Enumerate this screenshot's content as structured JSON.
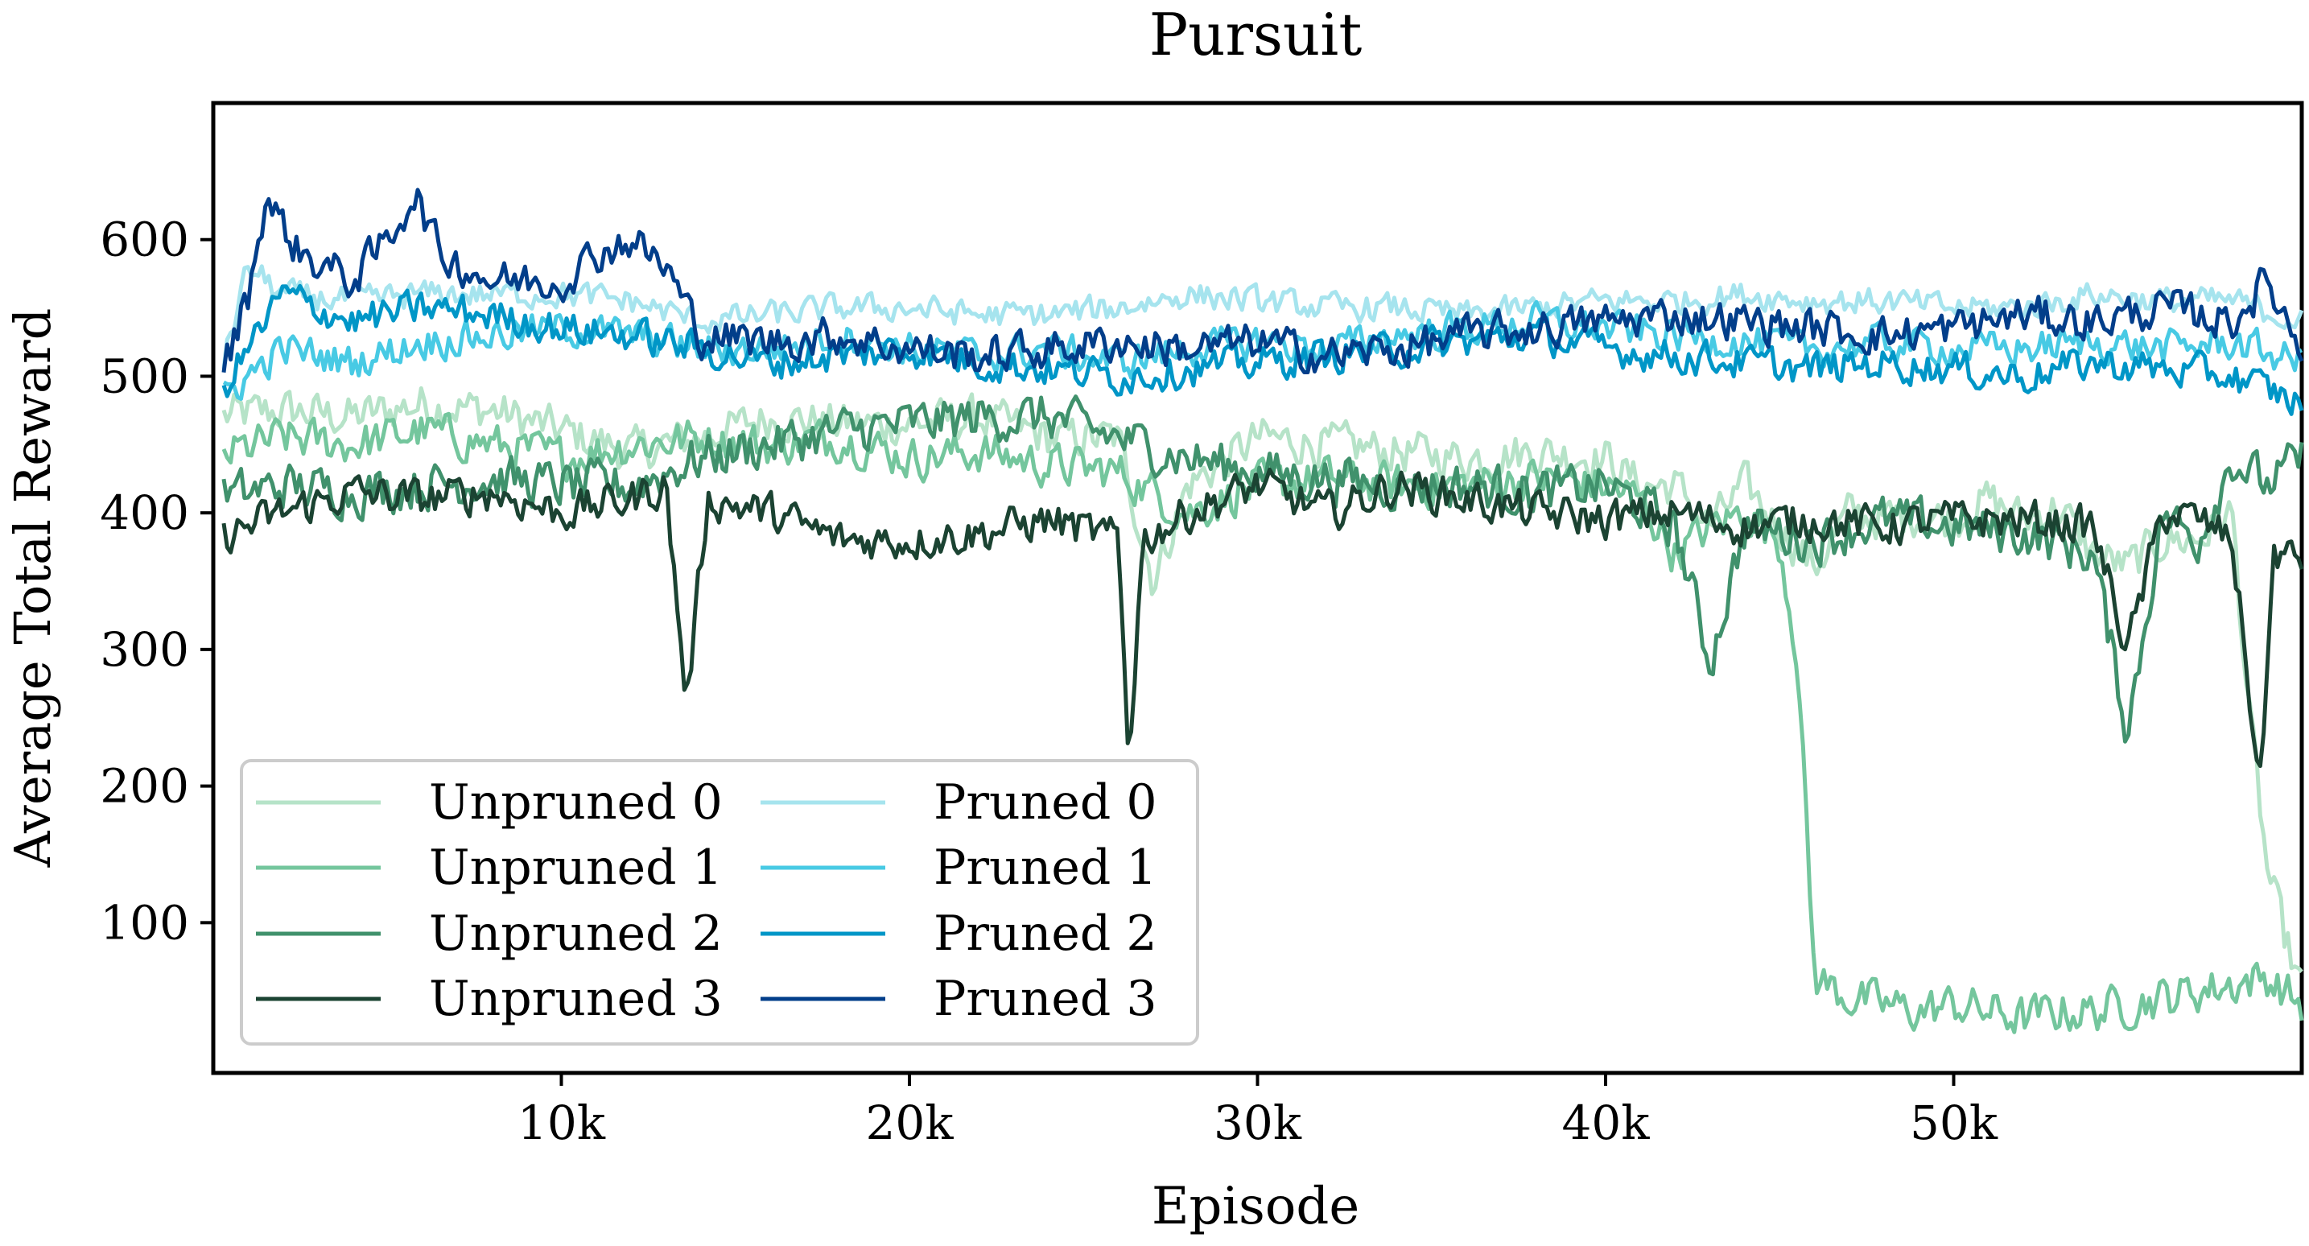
{
  "chart_data": {
    "type": "line",
    "title": "Pursuit",
    "xlabel": "Episode",
    "ylabel": "Average Total Reward",
    "xlim": [
      0,
      60000
    ],
    "ylim": [
      -10,
      700
    ],
    "x_ticks": [
      10000,
      20000,
      30000,
      40000,
      50000
    ],
    "x_tick_labels": [
      "10k",
      "20k",
      "30k",
      "40k",
      "50k"
    ],
    "y_ticks": [
      100,
      200,
      300,
      400,
      500,
      600
    ],
    "y_tick_labels": [
      "100",
      "200",
      "300",
      "400",
      "500",
      "600"
    ],
    "grid": false,
    "legend_position": "lower-left",
    "legend_columns": 2,
    "series": [
      {
        "name": "Unpruned 0",
        "color": "#b6e3c8",
        "x": [
          0,
          2000,
          4000,
          6000,
          8000,
          10000,
          12000,
          14000,
          16000,
          18000,
          20000,
          22000,
          24000,
          26000,
          27000,
          28000,
          30000,
          32000,
          34000,
          36000,
          38000,
          40000,
          41000,
          42000,
          43000,
          44000,
          45000,
          46000,
          47000,
          48000,
          49000,
          50000,
          51000,
          52000,
          53000,
          54000,
          55000,
          56000,
          57000,
          58000,
          58500,
          59000,
          59500,
          60000
        ],
        "y": [
          470,
          475,
          470,
          480,
          475,
          460,
          445,
          455,
          470,
          465,
          465,
          470,
          455,
          455,
          350,
          420,
          455,
          450,
          445,
          440,
          445,
          440,
          420,
          420,
          390,
          420,
          390,
          360,
          400,
          395,
          400,
          395,
          410,
          395,
          405,
          370,
          360,
          380,
          380,
          400,
          250,
          140,
          90,
          50
        ]
      },
      {
        "name": "Unpruned 1",
        "color": "#74c69d",
        "x": [
          0,
          2000,
          4000,
          6000,
          8000,
          10000,
          12000,
          14000,
          16000,
          18000,
          20000,
          22000,
          24000,
          26000,
          28000,
          30000,
          32000,
          34000,
          36000,
          38000,
          40000,
          41000,
          42000,
          43000,
          44000,
          45000,
          45500,
          46000,
          47000,
          48000,
          49000,
          50000,
          51000,
          52000,
          53000,
          54000,
          55000,
          56000,
          57000,
          58000,
          59000,
          60000
        ],
        "y": [
          440,
          455,
          450,
          460,
          450,
          440,
          450,
          455,
          450,
          455,
          440,
          445,
          435,
          430,
          400,
          420,
          425,
          420,
          420,
          425,
          420,
          410,
          370,
          390,
          400,
          380,
          300,
          60,
          45,
          40,
          35,
          40,
          35,
          30,
          35,
          35,
          40,
          45,
          50,
          55,
          60,
          40
        ]
      },
      {
        "name": "Unpruned 2",
        "color": "#40916c",
        "x": [
          0,
          2000,
          4000,
          6000,
          8000,
          10000,
          12000,
          14000,
          16000,
          18000,
          20000,
          22000,
          24000,
          26000,
          28000,
          30000,
          32000,
          34000,
          36000,
          38000,
          40000,
          42000,
          43000,
          44000,
          46000,
          48000,
          50000,
          52000,
          54000,
          55000,
          56000,
          57000,
          58000,
          59000,
          60000
        ],
        "y": [
          410,
          420,
          415,
          420,
          425,
          420,
          420,
          440,
          450,
          460,
          465,
          470,
          470,
          455,
          440,
          430,
          425,
          420,
          420,
          415,
          420,
          390,
          290,
          390,
          380,
          395,
          390,
          385,
          370,
          240,
          400,
          380,
          440,
          420,
          440
        ]
      },
      {
        "name": "Unpruned 3",
        "color": "#1b4332",
        "x": [
          0,
          2000,
          4000,
          6000,
          8000,
          10000,
          12000,
          13000,
          13600,
          14200,
          16000,
          18000,
          20000,
          22000,
          24000,
          26000,
          26300,
          26700,
          28000,
          30000,
          32000,
          34000,
          36000,
          38000,
          40000,
          42000,
          44000,
          46000,
          48000,
          50000,
          52000,
          54000,
          55000,
          56000,
          57000,
          58000,
          58800,
          59200,
          60000
        ],
        "y": [
          380,
          400,
          415,
          410,
          415,
          400,
          410,
          420,
          260,
          410,
          400,
          380,
          380,
          385,
          395,
          380,
          220,
          380,
          400,
          420,
          400,
          420,
          410,
          400,
          395,
          400,
          390,
          395,
          390,
          395,
          395,
          390,
          300,
          400,
          395,
          380,
          200,
          370,
          365
        ]
      },
      {
        "name": "Pruned 0",
        "color": "#a6e4ee",
        "x": [
          0,
          1000,
          2000,
          4000,
          6000,
          8000,
          10000,
          12000,
          14000,
          16000,
          18000,
          20000,
          22000,
          24000,
          26000,
          28000,
          30000,
          32000,
          34000,
          36000,
          38000,
          40000,
          42000,
          44000,
          46000,
          48000,
          50000,
          52000,
          54000,
          56000,
          58000,
          60000
        ],
        "y": [
          480,
          580,
          560,
          555,
          560,
          560,
          560,
          555,
          540,
          545,
          550,
          550,
          545,
          545,
          550,
          560,
          555,
          550,
          550,
          545,
          550,
          555,
          555,
          560,
          555,
          555,
          550,
          550,
          560,
          555,
          555,
          540
        ]
      },
      {
        "name": "Pruned 1",
        "color": "#48cae4",
        "x": [
          0,
          2000,
          4000,
          6000,
          8000,
          10000,
          12000,
          14000,
          16000,
          18000,
          20000,
          22000,
          24000,
          26000,
          28000,
          30000,
          32000,
          34000,
          36000,
          38000,
          40000,
          42000,
          44000,
          46000,
          48000,
          50000,
          52000,
          54000,
          56000,
          58000,
          60000
        ],
        "y": [
          480,
          520,
          510,
          525,
          530,
          535,
          530,
          520,
          520,
          530,
          520,
          515,
          520,
          510,
          520,
          525,
          520,
          530,
          535,
          540,
          535,
          530,
          525,
          520,
          525,
          520,
          520,
          525,
          520,
          525,
          510
        ]
      },
      {
        "name": "Pruned 2",
        "color": "#0096c7",
        "x": [
          0,
          2000,
          4000,
          6000,
          8000,
          10000,
          12000,
          14000,
          16000,
          18000,
          20000,
          22000,
          24000,
          26000,
          28000,
          30000,
          32000,
          34000,
          36000,
          38000,
          40000,
          42000,
          44000,
          46000,
          48000,
          50000,
          52000,
          54000,
          56000,
          58000,
          60000
        ],
        "y": [
          480,
          560,
          540,
          550,
          545,
          535,
          530,
          520,
          510,
          515,
          520,
          510,
          505,
          500,
          505,
          510,
          515,
          520,
          525,
          530,
          520,
          515,
          510,
          505,
          510,
          505,
          500,
          510,
          505,
          500,
          480
        ]
      },
      {
        "name": "Pruned 3",
        "color": "#023e8a",
        "x": [
          0,
          1000,
          1500,
          2500,
          4000,
          5000,
          5800,
          6500,
          8000,
          10000,
          11000,
          12000,
          13000,
          14000,
          16000,
          18000,
          20000,
          22000,
          24000,
          26000,
          28000,
          30000,
          32000,
          34000,
          36000,
          38000,
          40000,
          42000,
          44000,
          46000,
          48000,
          50000,
          52000,
          54000,
          56000,
          58000,
          59000,
          60000
        ],
        "y": [
          480,
          560,
          630,
          590,
          570,
          600,
          635,
          590,
          570,
          570,
          590,
          600,
          580,
          530,
          525,
          530,
          520,
          515,
          520,
          525,
          520,
          525,
          515,
          520,
          530,
          535,
          540,
          545,
          540,
          535,
          530,
          535,
          545,
          540,
          550,
          540,
          570,
          520
        ]
      }
    ]
  }
}
